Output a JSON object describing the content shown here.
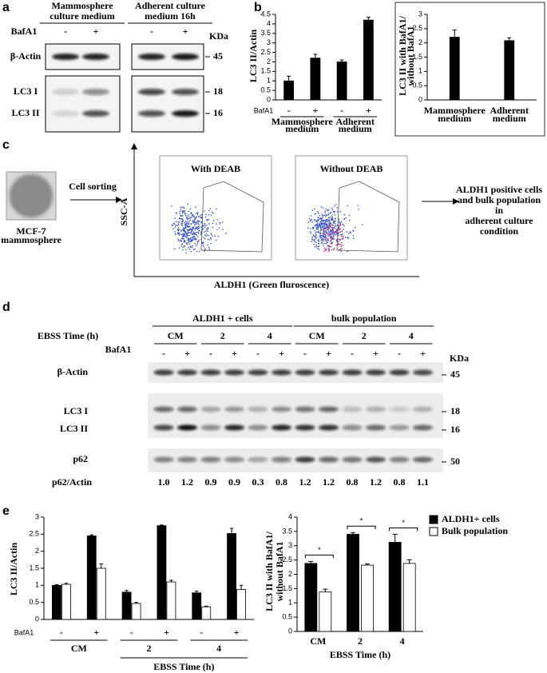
{
  "panel_labels": [
    "a",
    "b",
    "c",
    "d",
    "e"
  ],
  "blot_a": {
    "headers": [
      [
        "Mammosphere",
        "culture medium"
      ],
      [
        "Adherent culture",
        "medium 16h"
      ]
    ],
    "bafa1_label": "BafA1",
    "bafa1": [
      "-",
      "+",
      "-",
      "+"
    ],
    "kda": "KDa",
    "rows": [
      {
        "label": "β-Actin",
        "size": "45"
      },
      {
        "label": "LC3 I",
        "size": "18"
      },
      {
        "label": "LC3 II",
        "size": "16"
      }
    ]
  },
  "chart_data": [
    {
      "type": "bar",
      "y_label": "LC3 II/Actin",
      "ylim": [
        0,
        4.5
      ],
      "yticks": [
        0,
        0.5,
        1,
        1.5,
        2,
        2.5,
        3,
        3.5,
        4,
        4.5
      ],
      "x_row_label": "BafA1",
      "categories": [
        "-",
        "+",
        "-",
        "+"
      ],
      "groups": [
        [
          "Mammosphere",
          "medium"
        ],
        [
          "Adherent",
          "medium"
        ]
      ],
      "values": [
        1.0,
        2.2,
        2.0,
        4.2
      ],
      "errors": [
        0.25,
        0.2,
        0.1,
        0.15
      ],
      "color": "#000000"
    },
    {
      "type": "bar",
      "y_label": [
        "LC3 II with BafA1/",
        "without BafA1"
      ],
      "ylim": [
        0,
        3
      ],
      "yticks": [
        0,
        0.5,
        1,
        1.5,
        2,
        2.5,
        3
      ],
      "categories": [
        [
          "Mammosphere",
          "medium"
        ],
        [
          "Adherent",
          "medium"
        ]
      ],
      "values": [
        2.2,
        2.08
      ],
      "errors": [
        0.25,
        0.1
      ],
      "color": "#000000"
    },
    {
      "type": "bar",
      "y_label": "LC3 II/Actin",
      "ylim": [
        0,
        3
      ],
      "yticks": [
        0,
        0.5,
        1,
        1.5,
        2,
        2.5,
        3
      ],
      "x_row_label": "BafA1",
      "categories": [
        "-",
        "+",
        "-",
        "+",
        "-",
        "+"
      ],
      "groups": [
        "CM",
        "2",
        "4"
      ],
      "x_title": "EBSS Time (h)",
      "series": [
        {
          "color": "#000000",
          "values": [
            1.0,
            2.45,
            0.8,
            2.75,
            0.78,
            2.52
          ],
          "errors": [
            0.02,
            0.03,
            0.05,
            0.02,
            0.05,
            0.15
          ]
        },
        {
          "color": "#ffffff",
          "values": [
            1.03,
            1.5,
            0.47,
            1.1,
            0.37,
            0.88
          ],
          "errors": [
            0.03,
            0.13,
            0.03,
            0.05,
            0.02,
            0.12
          ]
        }
      ]
    },
    {
      "type": "bar",
      "y_label": [
        "LC3 II with BafA1/",
        "without BafA1"
      ],
      "ylim": [
        0,
        4
      ],
      "yticks": [
        0,
        0.5,
        1,
        1.5,
        2,
        2.5,
        3,
        3.5,
        4
      ],
      "categories": [
        "CM",
        "2",
        "4"
      ],
      "x_title": "EBSS Time (h)",
      "series": [
        {
          "name": "ALDH1+ cells",
          "color": "#000000",
          "values": [
            2.38,
            3.4,
            3.12
          ],
          "errors": [
            0.07,
            0.06,
            0.28
          ]
        },
        {
          "name": "Bulk population",
          "color": "#ffffff",
          "values": [
            1.38,
            2.32,
            2.38
          ],
          "errors": [
            0.1,
            0.04,
            0.13
          ]
        }
      ],
      "annotations": [
        "*",
        "*",
        "*"
      ],
      "legend": "upper right"
    }
  ],
  "flow_c": {
    "source_label": [
      "MCF-7",
      "mammosphere"
    ],
    "step": "Cell sorting",
    "y_axis": "SSC-A",
    "x_axis": "ALDH1 (Green fluroscence)",
    "plots": [
      "With DEAB",
      "Without DEAB"
    ],
    "result": [
      "ALDH1 positive cells",
      "and bulk population",
      "in",
      "adherent culture",
      "condition"
    ]
  },
  "blot_d": {
    "groups": [
      "ALDH1 + cells",
      "bulk population"
    ],
    "time_label": "EBSS Time (h)",
    "times": [
      "CM",
      "2",
      "4",
      "CM",
      "2",
      "4"
    ],
    "bafa1_label": "BafA1",
    "bafa1": [
      "-",
      "+",
      "-",
      "+",
      "-",
      "+",
      "-",
      "+",
      "-",
      "+",
      "-",
      "+"
    ],
    "kda": "KDa",
    "rows": [
      {
        "label": "β-Actin",
        "size": "45"
      },
      {
        "label": "LC3 I",
        "size": "18"
      },
      {
        "label": "LC3 II",
        "size": "16"
      },
      {
        "label": "p62",
        "size": "50"
      }
    ],
    "ratio_label": "p62/Actin",
    "ratios": [
      "1.0",
      "1.2",
      "0.9",
      "0.9",
      "0.3",
      "0.8",
      "1.2",
      "1.2",
      "0.8",
      "1.2",
      "0.8",
      "1.1"
    ]
  }
}
